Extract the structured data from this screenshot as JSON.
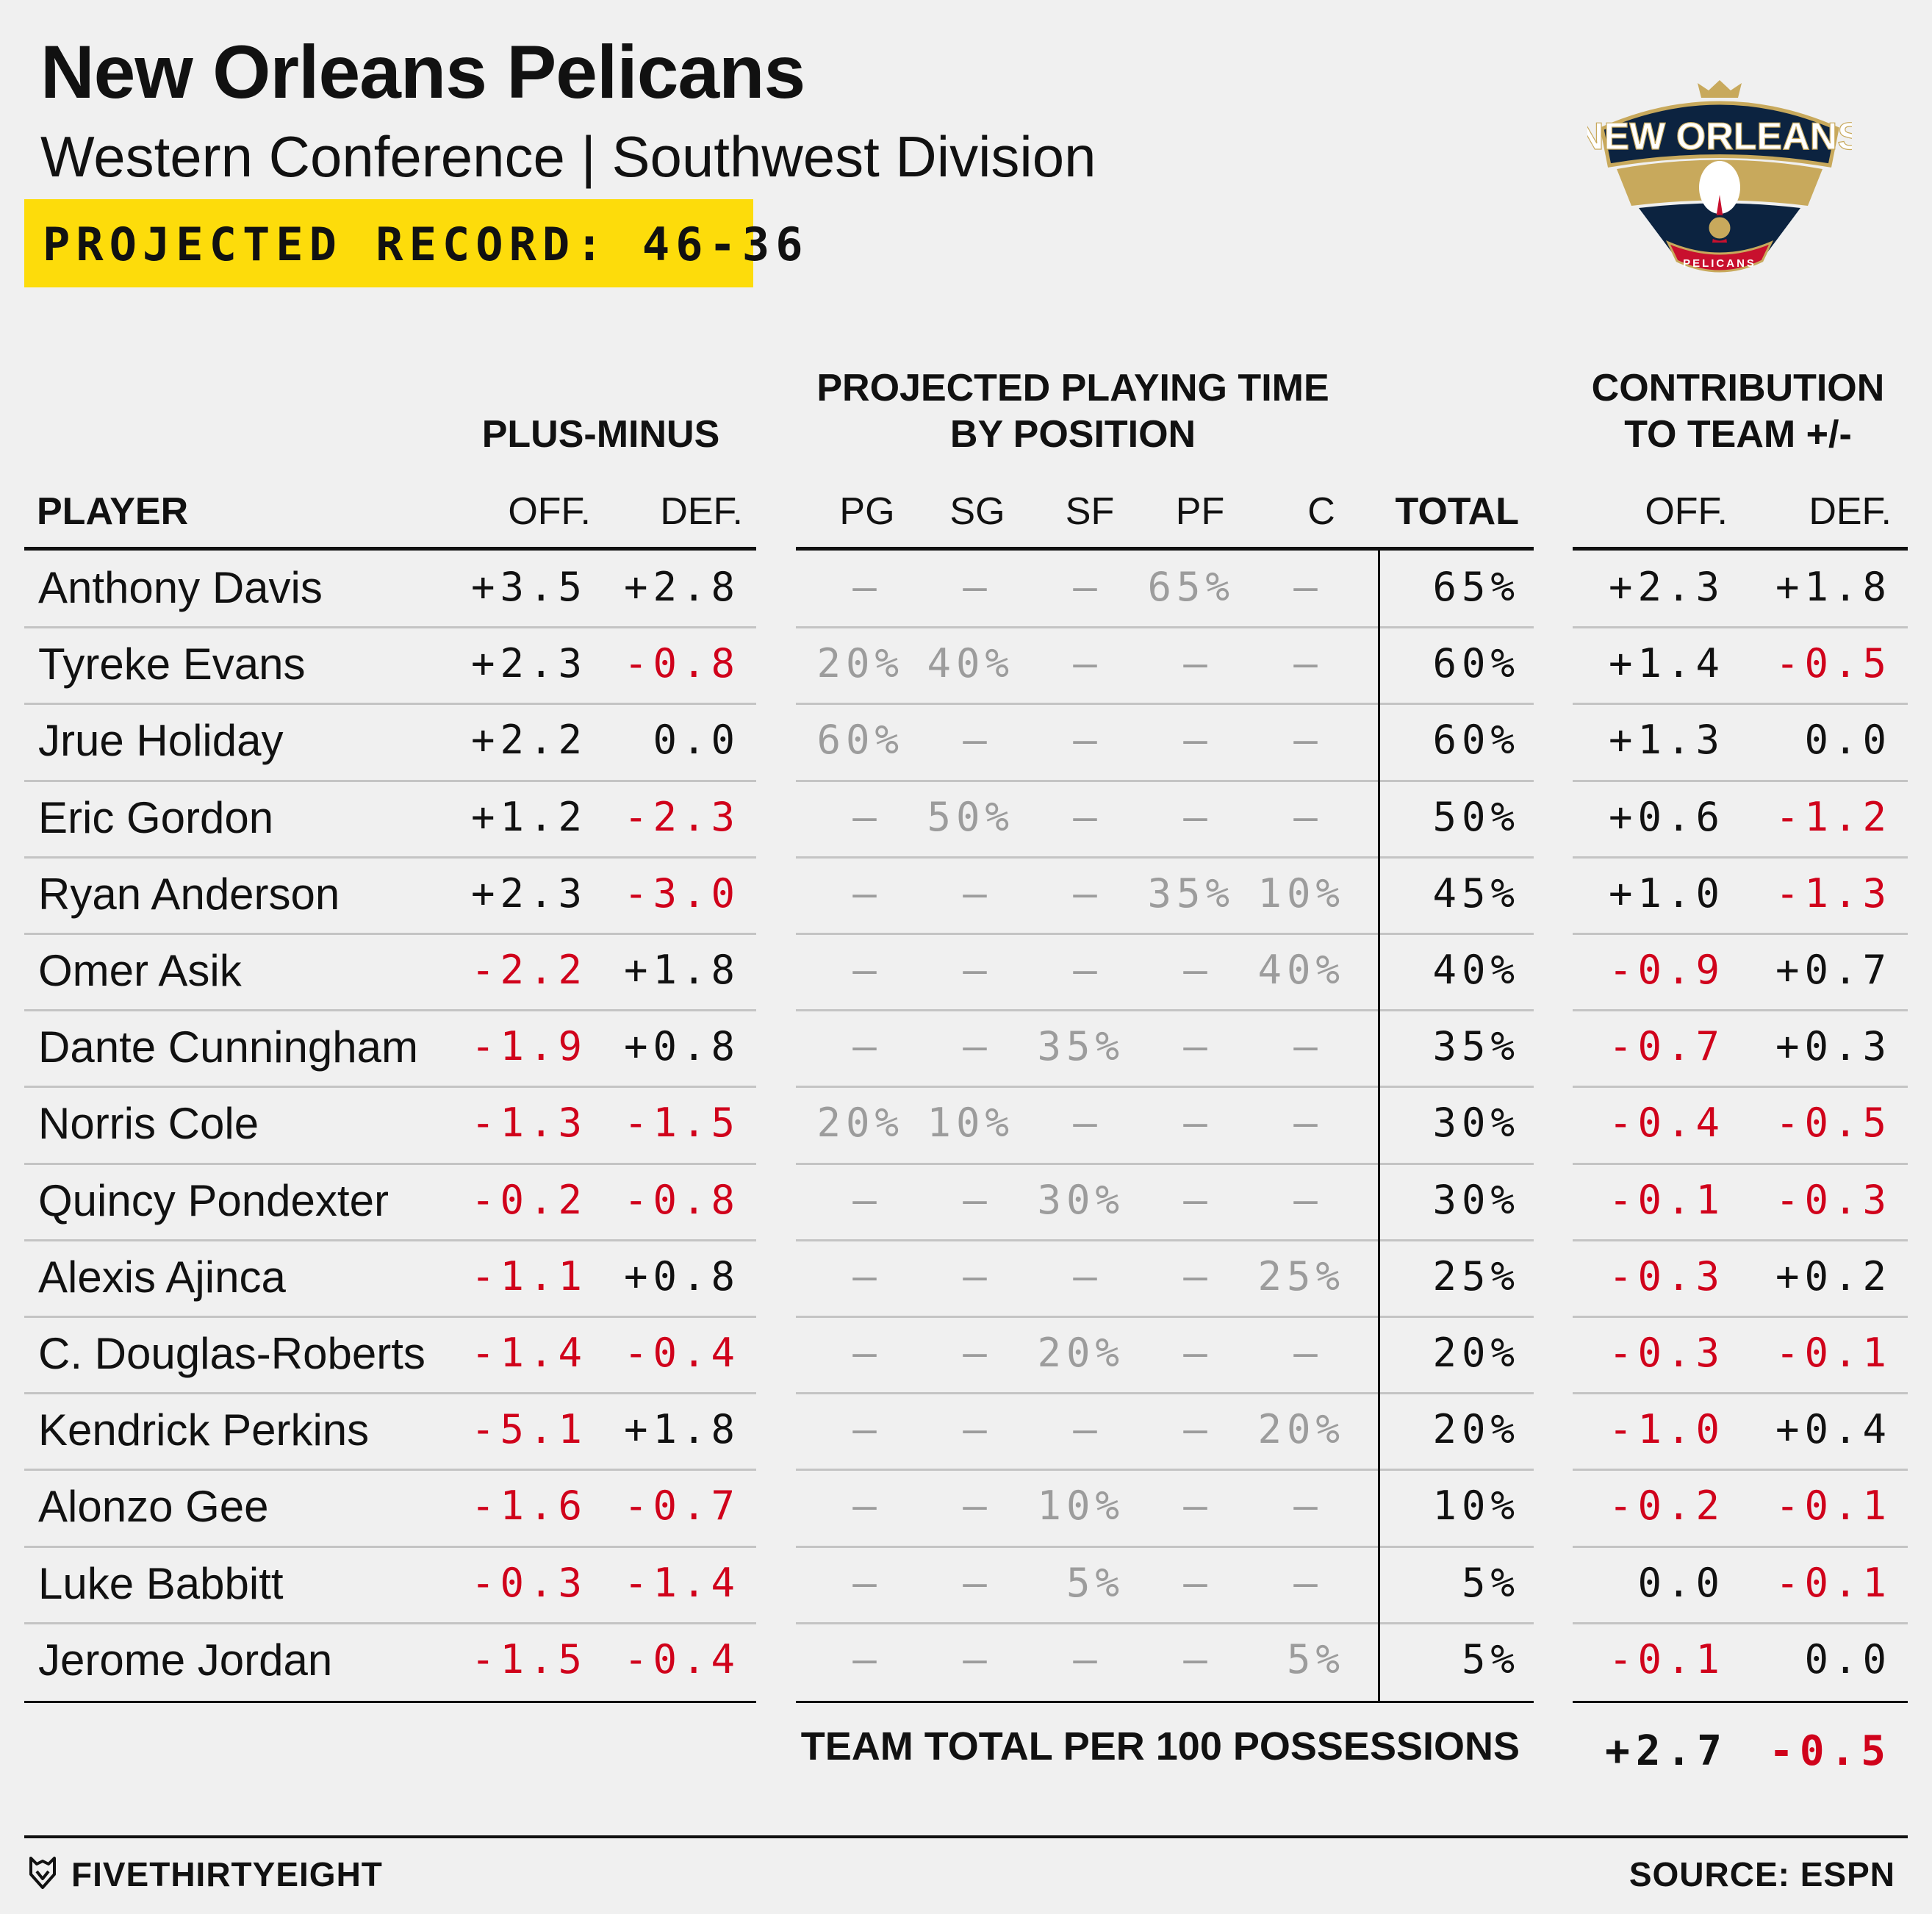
{
  "header": {
    "title": "New Orleans Pelicans",
    "subtitle": "Western Conference | Southwest Division",
    "record": "PROJECTED RECORD: 46-36",
    "logo_text": "NEW ORLEANS",
    "logo_subtext": "PELICANS"
  },
  "colors": {
    "negative": "#d0021b",
    "highlight": "#fddc0b",
    "grey": "#9c9c9c",
    "logo_navy": "#0c2340",
    "logo_gold": "#c8a95c",
    "logo_red": "#c8102e"
  },
  "chart_data": {
    "type": "table",
    "group_headers": {
      "plus_minus": "PLUS-MINUS",
      "playing_time": [
        "PROJECTED PLAYING TIME",
        "BY POSITION"
      ],
      "contribution": [
        "CONTRIBUTION",
        "TO TEAM +/-"
      ]
    },
    "columns": {
      "player": "PLAYER",
      "off": "OFF.",
      "def": "DEF.",
      "pg": "PG",
      "sg": "SG",
      "sf": "SF",
      "pf": "PF",
      "c": "C",
      "total": "TOTAL",
      "c_off": "OFF.",
      "c_def": "DEF."
    },
    "rows": [
      {
        "player": "Anthony Davis",
        "off": "+3.5",
        "def": "+2.8",
        "pg": "—",
        "sg": "—",
        "sf": "—",
        "pf": "65%",
        "c": "—",
        "total": "65%",
        "c_off": "+2.3",
        "c_def": "+1.8"
      },
      {
        "player": "Tyreke Evans",
        "off": "+2.3",
        "def": "-0.8",
        "pg": "20%",
        "sg": "40%",
        "sf": "—",
        "pf": "—",
        "c": "—",
        "total": "60%",
        "c_off": "+1.4",
        "c_def": "-0.5"
      },
      {
        "player": "Jrue Holiday",
        "off": "+2.2",
        "def": "0.0",
        "pg": "60%",
        "sg": "—",
        "sf": "—",
        "pf": "—",
        "c": "—",
        "total": "60%",
        "c_off": "+1.3",
        "c_def": "0.0"
      },
      {
        "player": "Eric Gordon",
        "off": "+1.2",
        "def": "-2.3",
        "pg": "—",
        "sg": "50%",
        "sf": "—",
        "pf": "—",
        "c": "—",
        "total": "50%",
        "c_off": "+0.6",
        "c_def": "-1.2"
      },
      {
        "player": "Ryan Anderson",
        "off": "+2.3",
        "def": "-3.0",
        "pg": "—",
        "sg": "—",
        "sf": "—",
        "pf": "35%",
        "c": "10%",
        "total": "45%",
        "c_off": "+1.0",
        "c_def": "-1.3"
      },
      {
        "player": "Omer Asik",
        "off": "-2.2",
        "def": "+1.8",
        "pg": "—",
        "sg": "—",
        "sf": "—",
        "pf": "—",
        "c": "40%",
        "total": "40%",
        "c_off": "-0.9",
        "c_def": "+0.7"
      },
      {
        "player": "Dante Cunningham",
        "off": "-1.9",
        "def": "+0.8",
        "pg": "—",
        "sg": "—",
        "sf": "35%",
        "pf": "—",
        "c": "—",
        "total": "35%",
        "c_off": "-0.7",
        "c_def": "+0.3"
      },
      {
        "player": "Norris Cole",
        "off": "-1.3",
        "def": "-1.5",
        "pg": "20%",
        "sg": "10%",
        "sf": "—",
        "pf": "—",
        "c": "—",
        "total": "30%",
        "c_off": "-0.4",
        "c_def": "-0.5"
      },
      {
        "player": "Quincy Pondexter",
        "off": "-0.2",
        "def": "-0.8",
        "pg": "—",
        "sg": "—",
        "sf": "30%",
        "pf": "—",
        "c": "—",
        "total": "30%",
        "c_off": "-0.1",
        "c_def": "-0.3"
      },
      {
        "player": "Alexis Ajinca",
        "off": "-1.1",
        "def": "+0.8",
        "pg": "—",
        "sg": "—",
        "sf": "—",
        "pf": "—",
        "c": "25%",
        "total": "25%",
        "c_off": "-0.3",
        "c_def": "+0.2"
      },
      {
        "player": "C. Douglas-Roberts",
        "off": "-1.4",
        "def": "-0.4",
        "pg": "—",
        "sg": "—",
        "sf": "20%",
        "pf": "—",
        "c": "—",
        "total": "20%",
        "c_off": "-0.3",
        "c_def": "-0.1"
      },
      {
        "player": "Kendrick Perkins",
        "off": "-5.1",
        "def": "+1.8",
        "pg": "—",
        "sg": "—",
        "sf": "—",
        "pf": "—",
        "c": "20%",
        "total": "20%",
        "c_off": "-1.0",
        "c_def": "+0.4"
      },
      {
        "player": "Alonzo Gee",
        "off": "-1.6",
        "def": "-0.7",
        "pg": "—",
        "sg": "—",
        "sf": "10%",
        "pf": "—",
        "c": "—",
        "total": "10%",
        "c_off": "-0.2",
        "c_def": "-0.1"
      },
      {
        "player": "Luke Babbitt",
        "off": "-0.3",
        "def": "-1.4",
        "pg": "—",
        "sg": "—",
        "sf": "5%",
        "pf": "—",
        "c": "—",
        "total": "5%",
        "c_off": "0.0",
        "c_def": "-0.1"
      },
      {
        "player": "Jerome Jordan",
        "off": "-1.5",
        "def": "-0.4",
        "pg": "—",
        "sg": "—",
        "sf": "—",
        "pf": "—",
        "c": "5%",
        "total": "5%",
        "c_off": "-0.1",
        "c_def": "0.0"
      }
    ],
    "team_total": {
      "label": "TEAM TOTAL PER 100 POSSESSIONS",
      "off": "+2.7",
      "def": "-0.5"
    }
  },
  "footer": {
    "brand": "FIVETHIRTYEIGHT",
    "source": "SOURCE: ESPN"
  }
}
